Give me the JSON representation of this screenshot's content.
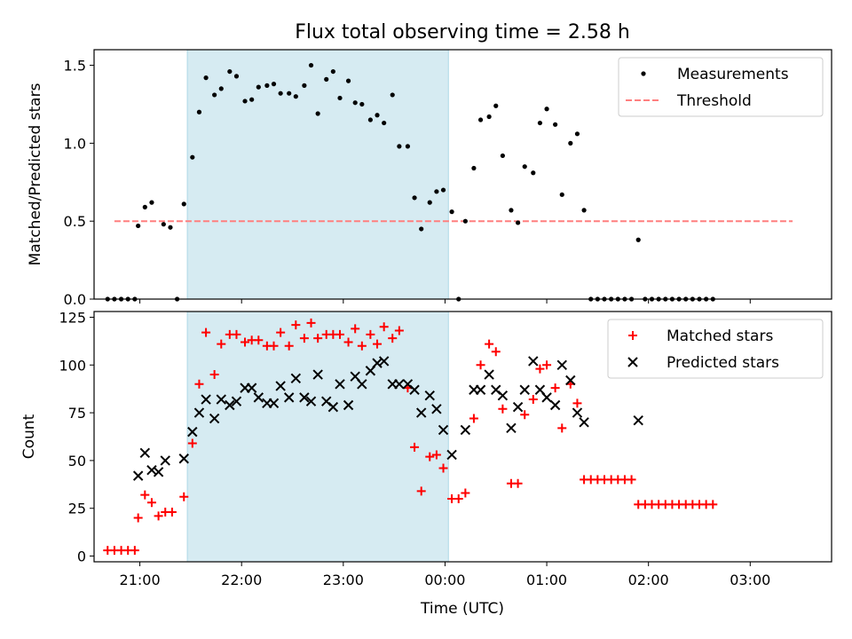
{
  "title": "Flux total observing time = 2.58 h",
  "xlabel": "Time (UTC)",
  "x_tick_labels": [
    "21:00",
    "22:00",
    "23:00",
    "00:00",
    "01:00",
    "02:00",
    "03:00"
  ],
  "colors": {
    "shade": "#add8e6",
    "measurement": "#000000",
    "threshold": "#ff7f7f",
    "matched": "#ff0000",
    "predicted": "#000000"
  },
  "chart_data": [
    {
      "type": "scatter",
      "ylabel": "Matched/Predicted stars",
      "ylim": [
        0,
        1.6
      ],
      "yticks": [
        "0.0",
        "0.5",
        "1.0",
        "1.5"
      ],
      "xlim": [
        "20:33",
        "03:48"
      ],
      "shaded_interval": [
        "21:28",
        "00:02"
      ],
      "legend": {
        "placement": "top-right",
        "entries": [
          "Measurements",
          "Threshold"
        ]
      },
      "threshold": {
        "name": "Threshold",
        "value": 0.5,
        "x_range": [
          "20:45",
          "03:25"
        ]
      },
      "series": [
        {
          "name": "Measurements",
          "marker": "dot",
          "points": [
            [
              "20:41",
              0
            ],
            [
              "20:45",
              0
            ],
            [
              "20:49",
              0
            ],
            [
              "20:53",
              0
            ],
            [
              "20:57",
              0
            ],
            [
              "20:59",
              0.47
            ],
            [
              "21:03",
              0.59
            ],
            [
              "21:07",
              0.62
            ],
            [
              "21:14",
              0.48
            ],
            [
              "21:18",
              0.46
            ],
            [
              "21:22",
              0
            ],
            [
              "21:26",
              0.61
            ],
            [
              "21:31",
              0.91
            ],
            [
              "21:35",
              1.2
            ],
            [
              "21:39",
              1.42
            ],
            [
              "21:44",
              1.31
            ],
            [
              "21:48",
              1.35
            ],
            [
              "21:53",
              1.46
            ],
            [
              "21:57",
              1.43
            ],
            [
              "22:02",
              1.27
            ],
            [
              "22:06",
              1.28
            ],
            [
              "22:10",
              1.36
            ],
            [
              "22:15",
              1.37
            ],
            [
              "22:19",
              1.38
            ],
            [
              "22:23",
              1.32
            ],
            [
              "22:28",
              1.32
            ],
            [
              "22:32",
              1.3
            ],
            [
              "22:37",
              1.37
            ],
            [
              "22:41",
              1.5
            ],
            [
              "22:45",
              1.19
            ],
            [
              "22:50",
              1.41
            ],
            [
              "22:54",
              1.46
            ],
            [
              "22:58",
              1.29
            ],
            [
              "23:03",
              1.4
            ],
            [
              "23:07",
              1.26
            ],
            [
              "23:11",
              1.25
            ],
            [
              "23:16",
              1.15
            ],
            [
              "23:20",
              1.18
            ],
            [
              "23:24",
              1.13
            ],
            [
              "23:29",
              1.31
            ],
            [
              "23:33",
              0.98
            ],
            [
              "23:38",
              0.98
            ],
            [
              "23:42",
              0.65
            ],
            [
              "23:46",
              0.45
            ],
            [
              "23:51",
              0.62
            ],
            [
              "23:55",
              0.69
            ],
            [
              "23:59",
              0.7
            ],
            [
              "00:04",
              0.56
            ],
            [
              "00:08",
              0
            ],
            [
              "00:12",
              0.5
            ],
            [
              "00:17",
              0.84
            ],
            [
              "00:21",
              1.15
            ],
            [
              "00:26",
              1.17
            ],
            [
              "00:30",
              1.24
            ],
            [
              "00:34",
              0.92
            ],
            [
              "00:39",
              0.57
            ],
            [
              "00:43",
              0.49
            ],
            [
              "00:47",
              0.85
            ],
            [
              "00:52",
              0.81
            ],
            [
              "00:56",
              1.13
            ],
            [
              "01:00",
              1.22
            ],
            [
              "01:05",
              1.12
            ],
            [
              "01:09",
              0.67
            ],
            [
              "01:14",
              1.0
            ],
            [
              "01:18",
              1.06
            ],
            [
              "01:22",
              0.57
            ],
            [
              "01:26",
              0
            ],
            [
              "01:30",
              0
            ],
            [
              "01:34",
              0
            ],
            [
              "01:38",
              0
            ],
            [
              "01:42",
              0
            ],
            [
              "01:46",
              0
            ],
            [
              "01:50",
              0
            ],
            [
              "01:54",
              0.38
            ],
            [
              "01:58",
              0
            ],
            [
              "02:02",
              0
            ],
            [
              "02:06",
              0
            ],
            [
              "02:10",
              0
            ],
            [
              "02:14",
              0
            ],
            [
              "02:18",
              0
            ],
            [
              "02:22",
              0
            ],
            [
              "02:26",
              0
            ],
            [
              "02:30",
              0
            ],
            [
              "02:34",
              0
            ],
            [
              "02:38",
              0
            ]
          ]
        }
      ]
    },
    {
      "type": "scatter",
      "ylabel": "Count",
      "ylim": [
        -3,
        128
      ],
      "yticks": [
        "0",
        "25",
        "50",
        "75",
        "100",
        "125"
      ],
      "xlim": [
        "20:33",
        "03:48"
      ],
      "shaded_interval": [
        "21:28",
        "00:02"
      ],
      "legend": {
        "placement": "top-right",
        "entries": [
          "Matched stars",
          "Predicted stars"
        ]
      },
      "series": [
        {
          "name": "Matched stars",
          "marker": "plus",
          "points": [
            [
              "20:41",
              3
            ],
            [
              "20:45",
              3
            ],
            [
              "20:49",
              3
            ],
            [
              "20:53",
              3
            ],
            [
              "20:57",
              3
            ],
            [
              "20:59",
              20
            ],
            [
              "21:03",
              32
            ],
            [
              "21:07",
              28
            ],
            [
              "21:11",
              21
            ],
            [
              "21:15",
              23
            ],
            [
              "21:19",
              23
            ],
            [
              "21:26",
              31
            ],
            [
              "21:31",
              59
            ],
            [
              "21:35",
              90
            ],
            [
              "21:39",
              117
            ],
            [
              "21:44",
              95
            ],
            [
              "21:48",
              111
            ],
            [
              "21:53",
              116
            ],
            [
              "21:57",
              116
            ],
            [
              "22:02",
              112
            ],
            [
              "22:06",
              113
            ],
            [
              "22:10",
              113
            ],
            [
              "22:15",
              110
            ],
            [
              "22:19",
              110
            ],
            [
              "22:23",
              117
            ],
            [
              "22:28",
              110
            ],
            [
              "22:32",
              121
            ],
            [
              "22:37",
              114
            ],
            [
              "22:41",
              122
            ],
            [
              "22:45",
              114
            ],
            [
              "22:50",
              116
            ],
            [
              "22:54",
              116
            ],
            [
              "22:58",
              116
            ],
            [
              "23:03",
              112
            ],
            [
              "23:07",
              119
            ],
            [
              "23:11",
              110
            ],
            [
              "23:16",
              116
            ],
            [
              "23:20",
              111
            ],
            [
              "23:24",
              120
            ],
            [
              "23:29",
              114
            ],
            [
              "23:33",
              118
            ],
            [
              "23:38",
              88
            ],
            [
              "23:42",
              57
            ],
            [
              "23:46",
              34
            ],
            [
              "23:51",
              52
            ],
            [
              "23:55",
              53
            ],
            [
              "23:59",
              46
            ],
            [
              "00:04",
              30
            ],
            [
              "00:08",
              30
            ],
            [
              "00:12",
              33
            ],
            [
              "00:17",
              72
            ],
            [
              "00:21",
              100
            ],
            [
              "00:26",
              111
            ],
            [
              "00:30",
              107
            ],
            [
              "00:34",
              77
            ],
            [
              "00:39",
              38
            ],
            [
              "00:43",
              38
            ],
            [
              "00:47",
              74
            ],
            [
              "00:52",
              82
            ],
            [
              "00:56",
              98
            ],
            [
              "01:00",
              100
            ],
            [
              "01:05",
              88
            ],
            [
              "01:09",
              67
            ],
            [
              "01:14",
              90
            ],
            [
              "01:18",
              80
            ],
            [
              "01:22",
              40
            ],
            [
              "01:26",
              40
            ],
            [
              "01:30",
              40
            ],
            [
              "01:34",
              40
            ],
            [
              "01:38",
              40
            ],
            [
              "01:42",
              40
            ],
            [
              "01:46",
              40
            ],
            [
              "01:50",
              40
            ],
            [
              "01:54",
              27
            ],
            [
              "01:58",
              27
            ],
            [
              "02:02",
              27
            ],
            [
              "02:06",
              27
            ],
            [
              "02:10",
              27
            ],
            [
              "02:14",
              27
            ],
            [
              "02:18",
              27
            ],
            [
              "02:22",
              27
            ],
            [
              "02:26",
              27
            ],
            [
              "02:30",
              27
            ],
            [
              "02:34",
              27
            ],
            [
              "02:38",
              27
            ]
          ]
        },
        {
          "name": "Predicted stars",
          "marker": "x",
          "points": [
            [
              "20:59",
              42
            ],
            [
              "21:03",
              54
            ],
            [
              "21:07",
              45
            ],
            [
              "21:11",
              44
            ],
            [
              "21:15",
              50
            ],
            [
              "21:26",
              51
            ],
            [
              "21:31",
              65
            ],
            [
              "21:35",
              75
            ],
            [
              "21:39",
              82
            ],
            [
              "21:44",
              72
            ],
            [
              "21:48",
              82
            ],
            [
              "21:53",
              79
            ],
            [
              "21:57",
              81
            ],
            [
              "22:02",
              88
            ],
            [
              "22:06",
              88
            ],
            [
              "22:10",
              83
            ],
            [
              "22:15",
              80
            ],
            [
              "22:19",
              80
            ],
            [
              "22:23",
              89
            ],
            [
              "22:28",
              83
            ],
            [
              "22:32",
              93
            ],
            [
              "22:37",
              83
            ],
            [
              "22:41",
              81
            ],
            [
              "22:45",
              95
            ],
            [
              "22:50",
              81
            ],
            [
              "22:54",
              78
            ],
            [
              "22:58",
              90
            ],
            [
              "23:03",
              79
            ],
            [
              "23:07",
              94
            ],
            [
              "23:11",
              90
            ],
            [
              "23:16",
              97
            ],
            [
              "23:20",
              101
            ],
            [
              "23:24",
              102
            ],
            [
              "23:29",
              90
            ],
            [
              "23:33",
              90
            ],
            [
              "23:38",
              90
            ],
            [
              "23:42",
              87
            ],
            [
              "23:46",
              75
            ],
            [
              "23:51",
              84
            ],
            [
              "23:55",
              77
            ],
            [
              "23:59",
              66
            ],
            [
              "00:04",
              53
            ],
            [
              "00:12",
              66
            ],
            [
              "00:17",
              87
            ],
            [
              "00:21",
              87
            ],
            [
              "00:26",
              95
            ],
            [
              "00:30",
              87
            ],
            [
              "00:34",
              84
            ],
            [
              "00:39",
              67
            ],
            [
              "00:43",
              78
            ],
            [
              "00:47",
              87
            ],
            [
              "00:52",
              102
            ],
            [
              "00:56",
              87
            ],
            [
              "01:00",
              83
            ],
            [
              "01:05",
              79
            ],
            [
              "01:09",
              100
            ],
            [
              "01:14",
              92
            ],
            [
              "01:18",
              75
            ],
            [
              "01:22",
              70
            ],
            [
              "01:54",
              71
            ]
          ]
        }
      ]
    }
  ]
}
